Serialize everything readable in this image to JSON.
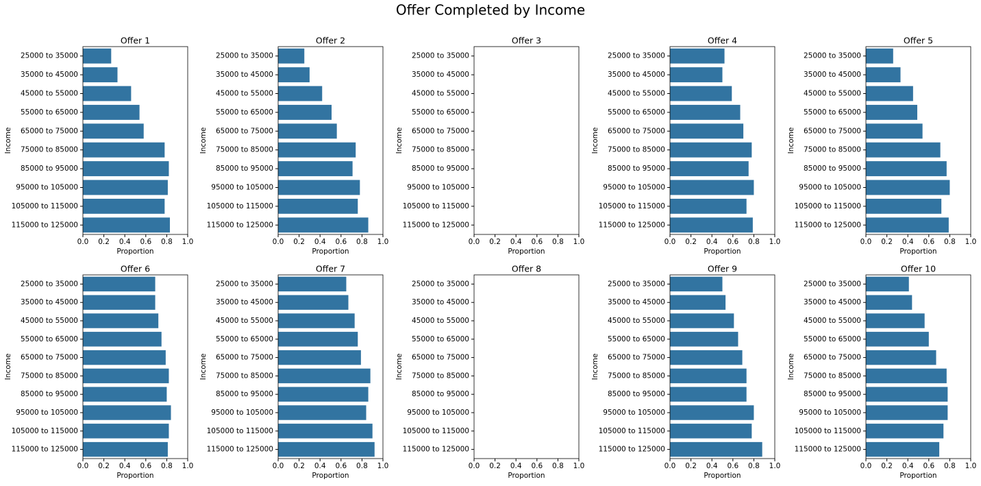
{
  "title": "Offer Completed by Income",
  "chart_data": [
    {
      "type": "bar",
      "orientation": "horizontal",
      "title": "Offer 1",
      "xlabel": "Proportion",
      "ylabel": "Income",
      "color": "#3274a1",
      "categories": [
        "25000 to 35000",
        "35000 to 45000",
        "45000 to 55000",
        "55000 to 65000",
        "65000 to 75000",
        "75000 to 85000",
        "85000 to 95000",
        "95000 to 105000",
        "105000 to 115000",
        "115000 to 125000"
      ],
      "values": [
        0.27,
        0.33,
        0.46,
        0.54,
        0.58,
        0.78,
        0.82,
        0.81,
        0.78,
        0.83
      ],
      "xlim": [
        0,
        1
      ],
      "xticks": [
        {
          "value": 0,
          "label": "0.0"
        },
        0.2,
        0.4,
        0.6,
        0.8,
        {
          "value": 1,
          "label": "1.0"
        }
      ]
    },
    {
      "type": "bar",
      "orientation": "horizontal",
      "title": "Offer 2",
      "xlabel": "Proportion",
      "ylabel": "Income",
      "color": "#3274a1",
      "categories": [
        "25000 to 35000",
        "35000 to 45000",
        "45000 to 55000",
        "55000 to 65000",
        "65000 to 75000",
        "75000 to 85000",
        "85000 to 95000",
        "95000 to 105000",
        "105000 to 115000",
        "115000 to 125000"
      ],
      "values": [
        0.25,
        0.3,
        0.42,
        0.51,
        0.56,
        0.74,
        0.71,
        0.78,
        0.76,
        0.86
      ],
      "xlim": [
        0,
        1
      ],
      "xticks": [
        {
          "value": 0,
          "label": "0.0"
        },
        0.2,
        0.4,
        0.6,
        0.8,
        {
          "value": 1,
          "label": "1.0"
        }
      ]
    },
    {
      "type": "bar",
      "orientation": "horizontal",
      "title": "Offer 3",
      "xlabel": "Proportion",
      "ylabel": "Income",
      "color": "#3274a1",
      "categories": [
        "25000 to 35000",
        "35000 to 45000",
        "45000 to 55000",
        "55000 to 65000",
        "65000 to 75000",
        "75000 to 85000",
        "85000 to 95000",
        "95000 to 105000",
        "105000 to 115000",
        "115000 to 125000"
      ],
      "values": [
        null,
        null,
        null,
        null,
        null,
        null,
        null,
        null,
        null,
        null
      ],
      "xlim": [
        0,
        1
      ],
      "xticks": [
        {
          "value": 0,
          "label": "0.0"
        },
        0.2,
        0.4,
        0.6,
        0.8,
        {
          "value": 1,
          "label": "1.0"
        }
      ]
    },
    {
      "type": "bar",
      "orientation": "horizontal",
      "title": "Offer 4",
      "xlabel": "Proportion",
      "ylabel": "Income",
      "color": "#3274a1",
      "categories": [
        "25000 to 35000",
        "35000 to 45000",
        "45000 to 55000",
        "55000 to 65000",
        "65000 to 75000",
        "75000 to 85000",
        "85000 to 95000",
        "95000 to 105000",
        "105000 to 115000",
        "115000 to 125000"
      ],
      "values": [
        0.52,
        0.5,
        0.59,
        0.67,
        0.7,
        0.78,
        0.75,
        0.8,
        0.73,
        0.79
      ],
      "xlim": [
        0,
        1
      ],
      "xticks": [
        {
          "value": 0,
          "label": "0.0"
        },
        0.2,
        0.4,
        0.6,
        0.8,
        {
          "value": 1,
          "label": "1.0"
        }
      ]
    },
    {
      "type": "bar",
      "orientation": "horizontal",
      "title": "Offer 5",
      "xlabel": "Proportion",
      "ylabel": "Income",
      "color": "#3274a1",
      "categories": [
        "25000 to 35000",
        "35000 to 45000",
        "45000 to 55000",
        "55000 to 65000",
        "65000 to 75000",
        "75000 to 85000",
        "85000 to 95000",
        "95000 to 105000",
        "105000 to 115000",
        "115000 to 125000"
      ],
      "values": [
        0.26,
        0.33,
        0.45,
        0.49,
        0.54,
        0.71,
        0.77,
        0.8,
        0.72,
        0.79
      ],
      "xlim": [
        0,
        1
      ],
      "xticks": [
        {
          "value": 0,
          "label": "0.0"
        },
        0.2,
        0.4,
        0.6,
        0.8,
        {
          "value": 1,
          "label": "1.0"
        }
      ]
    },
    {
      "type": "bar",
      "orientation": "horizontal",
      "title": "Offer 6",
      "xlabel": "Proportion",
      "ylabel": "Income",
      "color": "#3274a1",
      "categories": [
        "25000 to 35000",
        "35000 to 45000",
        "45000 to 55000",
        "55000 to 65000",
        "65000 to 75000",
        "75000 to 85000",
        "85000 to 95000",
        "95000 to 105000",
        "105000 to 115000",
        "115000 to 125000"
      ],
      "values": [
        0.69,
        0.69,
        0.72,
        0.75,
        0.79,
        0.82,
        0.8,
        0.84,
        0.82,
        0.81
      ],
      "xlim": [
        0,
        1
      ],
      "xticks": [
        {
          "value": 0,
          "label": "0.0"
        },
        0.2,
        0.4,
        0.6,
        0.8,
        {
          "value": 1,
          "label": "1.0"
        }
      ]
    },
    {
      "type": "bar",
      "orientation": "horizontal",
      "title": "Offer 7",
      "xlabel": "Proportion",
      "ylabel": "Income",
      "color": "#3274a1",
      "categories": [
        "25000 to 35000",
        "35000 to 45000",
        "45000 to 55000",
        "55000 to 65000",
        "65000 to 75000",
        "75000 to 85000",
        "85000 to 95000",
        "95000 to 105000",
        "105000 to 115000",
        "115000 to 125000"
      ],
      "values": [
        0.65,
        0.67,
        0.73,
        0.76,
        0.79,
        0.88,
        0.86,
        0.84,
        0.9,
        0.92
      ],
      "xlim": [
        0,
        1
      ],
      "xticks": [
        {
          "value": 0,
          "label": "0.0"
        },
        0.2,
        0.4,
        0.6,
        0.8,
        {
          "value": 1,
          "label": "1.0"
        }
      ]
    },
    {
      "type": "bar",
      "orientation": "horizontal",
      "title": "Offer 8",
      "xlabel": "Proportion",
      "ylabel": "Income",
      "color": "#3274a1",
      "categories": [
        "25000 to 35000",
        "35000 to 45000",
        "45000 to 55000",
        "55000 to 65000",
        "65000 to 75000",
        "75000 to 85000",
        "85000 to 95000",
        "95000 to 105000",
        "105000 to 115000",
        "115000 to 125000"
      ],
      "values": [
        null,
        null,
        null,
        null,
        null,
        null,
        null,
        null,
        null,
        null
      ],
      "xlim": [
        0,
        1
      ],
      "xticks": [
        {
          "value": 0,
          "label": "0.0"
        },
        0.2,
        0.4,
        0.6,
        0.8,
        {
          "value": 1,
          "label": "1.0"
        }
      ]
    },
    {
      "type": "bar",
      "orientation": "horizontal",
      "title": "Offer 9",
      "xlabel": "Proportion",
      "ylabel": "Income",
      "color": "#3274a1",
      "categories": [
        "25000 to 35000",
        "35000 to 45000",
        "45000 to 55000",
        "55000 to 65000",
        "65000 to 75000",
        "75000 to 85000",
        "85000 to 95000",
        "95000 to 105000",
        "105000 to 115000",
        "115000 to 125000"
      ],
      "values": [
        0.5,
        0.53,
        0.61,
        0.65,
        0.69,
        0.73,
        0.73,
        0.8,
        0.78,
        0.88
      ],
      "xlim": [
        0,
        1
      ],
      "xticks": [
        {
          "value": 0,
          "label": "0.0"
        },
        0.2,
        0.4,
        0.6,
        0.8,
        {
          "value": 1,
          "label": "1.0"
        }
      ]
    },
    {
      "type": "bar",
      "orientation": "horizontal",
      "title": "Offer 10",
      "xlabel": "Proportion",
      "ylabel": "Income",
      "color": "#3274a1",
      "categories": [
        "25000 to 35000",
        "35000 to 45000",
        "45000 to 55000",
        "55000 to 65000",
        "65000 to 75000",
        "75000 to 85000",
        "85000 to 95000",
        "95000 to 105000",
        "105000 to 115000",
        "115000 to 125000"
      ],
      "values": [
        0.41,
        0.44,
        0.56,
        0.6,
        0.67,
        0.77,
        0.78,
        0.78,
        0.74,
        0.7
      ],
      "xlim": [
        0,
        1
      ],
      "xticks": [
        {
          "value": 0,
          "label": "0.0"
        },
        0.2,
        0.4,
        0.6,
        0.8,
        {
          "value": 1,
          "label": "1.0"
        }
      ]
    }
  ]
}
